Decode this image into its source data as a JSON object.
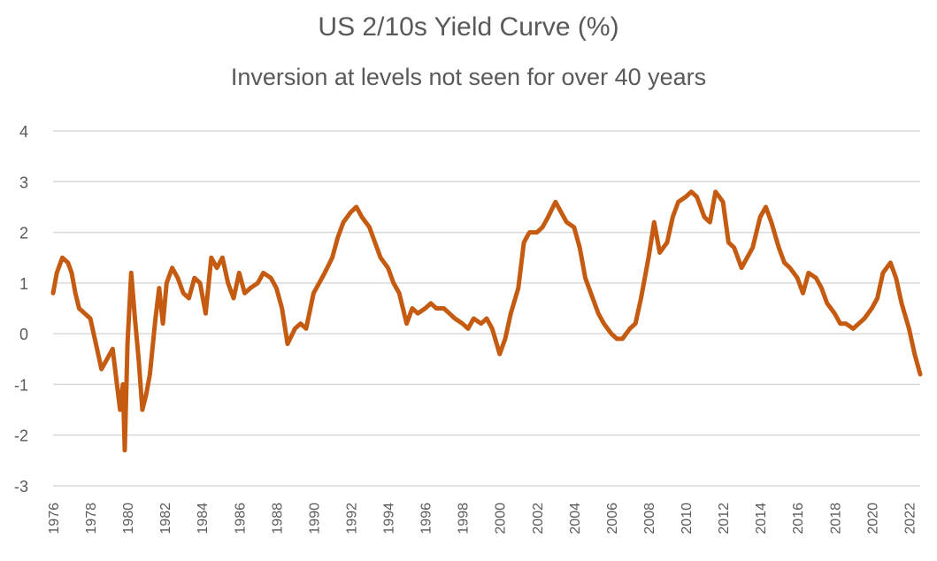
{
  "title": "US 2/10s Yield Curve (%)",
  "subtitle": "Inversion at levels not seen for over 40 years",
  "chart_data": {
    "type": "line",
    "title": "US 2/10s Yield Curve (%)",
    "subtitle": "Inversion at levels not seen for over 40 years",
    "xlabel": "",
    "ylabel": "",
    "xlim": [
      1976,
      2022.6
    ],
    "ylim": [
      -3,
      4
    ],
    "yticks": [
      -3,
      -2,
      -1,
      0,
      1,
      2,
      3,
      4
    ],
    "xticks": [
      "1976",
      "1978",
      "1980",
      "1982",
      "1984",
      "1986",
      "1988",
      "1990",
      "1992",
      "1994",
      "1996",
      "1998",
      "2000",
      "2002",
      "2004",
      "2006",
      "2008",
      "2010",
      "2012",
      "2014",
      "2016",
      "2018",
      "2020",
      "2022"
    ],
    "grid": "horizontal",
    "legend": "none",
    "colors": {
      "line": "#C55A11",
      "grid": "#D9D9D9",
      "text": "#595959"
    },
    "series": [
      {
        "x": [
          1976.0,
          1976.2,
          1976.5,
          1976.8,
          1977.0,
          1977.2,
          1977.4,
          1977.7,
          1978.0,
          1978.3,
          1978.6,
          1978.9,
          1979.2,
          1979.4,
          1979.6,
          1979.75,
          1979.85,
          1980.0,
          1980.2,
          1980.4,
          1980.6,
          1980.8,
          1981.0,
          1981.2,
          1981.5,
          1981.7,
          1981.9,
          1982.1,
          1982.4,
          1982.7,
          1983.0,
          1983.3,
          1983.6,
          1983.9,
          1984.2,
          1984.5,
          1984.8,
          1985.1,
          1985.4,
          1985.7,
          1986.0,
          1986.3,
          1986.6,
          1987.0,
          1987.3,
          1987.7,
          1988.0,
          1988.3,
          1988.6,
          1989.0,
          1989.3,
          1989.6,
          1990.0,
          1990.3,
          1990.6,
          1991.0,
          1991.3,
          1991.6,
          1992.0,
          1992.3,
          1992.6,
          1993.0,
          1993.3,
          1993.6,
          1994.0,
          1994.3,
          1994.6,
          1995.0,
          1995.3,
          1995.6,
          1996.0,
          1996.3,
          1996.6,
          1997.0,
          1997.3,
          1997.6,
          1998.0,
          1998.3,
          1998.6,
          1999.0,
          1999.3,
          1999.6,
          2000.0,
          2000.3,
          2000.6,
          2001.0,
          2001.3,
          2001.6,
          2002.0,
          2002.3,
          2002.6,
          2003.0,
          2003.3,
          2003.6,
          2004.0,
          2004.3,
          2004.6,
          2005.0,
          2005.3,
          2005.6,
          2006.0,
          2006.3,
          2006.6,
          2007.0,
          2007.3,
          2007.6,
          2008.0,
          2008.3,
          2008.6,
          2009.0,
          2009.3,
          2009.6,
          2010.0,
          2010.3,
          2010.6,
          2011.0,
          2011.3,
          2011.6,
          2012.0,
          2012.3,
          2012.6,
          2013.0,
          2013.3,
          2013.6,
          2014.0,
          2014.3,
          2014.6,
          2015.0,
          2015.3,
          2015.6,
          2016.0,
          2016.3,
          2016.6,
          2017.0,
          2017.3,
          2017.6,
          2018.0,
          2018.3,
          2018.6,
          2019.0,
          2019.3,
          2019.6,
          2020.0,
          2020.3,
          2020.6,
          2021.0,
          2021.3,
          2021.6,
          2022.0,
          2022.3,
          2022.6
        ],
        "values": [
          0.8,
          1.2,
          1.5,
          1.4,
          1.2,
          0.8,
          0.5,
          0.4,
          0.3,
          -0.2,
          -0.7,
          -0.5,
          -0.3,
          -0.9,
          -1.5,
          -1.0,
          -2.3,
          -0.2,
          1.2,
          0.3,
          -0.5,
          -1.5,
          -1.2,
          -0.8,
          0.3,
          0.9,
          0.2,
          1.0,
          1.3,
          1.1,
          0.8,
          0.7,
          1.1,
          1.0,
          0.4,
          1.5,
          1.3,
          1.5,
          1.0,
          0.7,
          1.2,
          0.8,
          0.9,
          1.0,
          1.2,
          1.1,
          0.9,
          0.5,
          -0.2,
          0.1,
          0.2,
          0.1,
          0.8,
          1.0,
          1.2,
          1.5,
          1.9,
          2.2,
          2.4,
          2.5,
          2.3,
          2.1,
          1.8,
          1.5,
          1.3,
          1.0,
          0.8,
          0.2,
          0.5,
          0.4,
          0.5,
          0.6,
          0.5,
          0.5,
          0.4,
          0.3,
          0.2,
          0.1,
          0.3,
          0.2,
          0.3,
          0.1,
          -0.4,
          -0.1,
          0.4,
          0.9,
          1.8,
          2.0,
          2.0,
          2.1,
          2.3,
          2.6,
          2.4,
          2.2,
          2.1,
          1.7,
          1.1,
          0.7,
          0.4,
          0.2,
          0.0,
          -0.1,
          -0.1,
          0.1,
          0.2,
          0.7,
          1.5,
          2.2,
          1.6,
          1.8,
          2.3,
          2.6,
          2.7,
          2.8,
          2.7,
          2.3,
          2.2,
          2.8,
          2.6,
          1.8,
          1.7,
          1.3,
          1.5,
          1.7,
          2.3,
          2.5,
          2.2,
          1.7,
          1.4,
          1.3,
          1.1,
          0.8,
          1.2,
          1.1,
          0.9,
          0.6,
          0.4,
          0.2,
          0.2,
          0.1,
          0.2,
          0.3,
          0.5,
          0.7,
          1.2,
          1.4,
          1.1,
          0.6,
          0.1,
          -0.4,
          -0.8
        ]
      }
    ]
  }
}
